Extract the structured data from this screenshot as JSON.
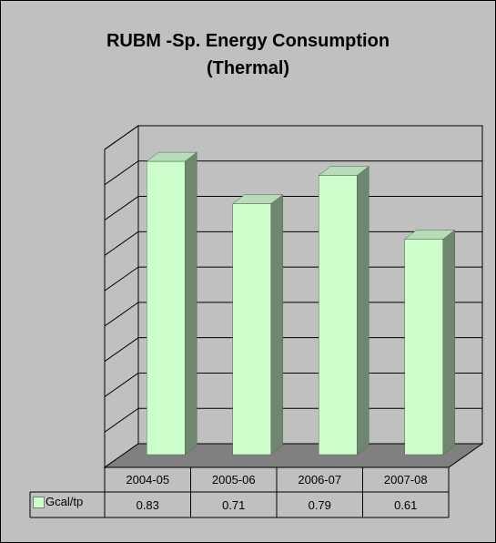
{
  "chart_data": {
    "type": "bar",
    "title": "RUBM -Sp. Energy Consumption",
    "subtitle": "(Thermal)",
    "categories": [
      "2004-05",
      "2005-06",
      "2006-07",
      "2007-08"
    ],
    "series": [
      {
        "name": "Gcal/tp",
        "values": [
          0.83,
          0.71,
          0.79,
          0.61
        ]
      }
    ],
    "ylim": [
      0,
      0.9
    ],
    "grid": true,
    "data_table": true,
    "legend": "data-table-left",
    "colors": {
      "bar_front": "#ccffcc",
      "bar_side": "#6f876f",
      "bar_top": "#b8dcb8",
      "background": "#c0c0c0",
      "floor": "#808080",
      "gridline": "#000000"
    }
  }
}
